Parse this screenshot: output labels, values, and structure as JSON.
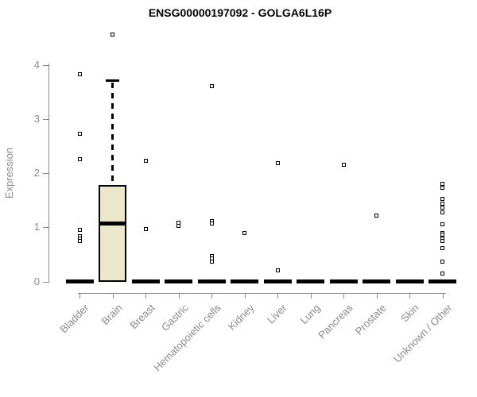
{
  "chart_data": {
    "type": "boxplot",
    "title": "ENSG00000197092 - GOLGA6L16P",
    "xlabel": "",
    "ylabel": "Expression",
    "ylim": [
      0,
      4.6
    ],
    "yticks": [
      0,
      1,
      2,
      3,
      4
    ],
    "grid": false,
    "legend": "none",
    "categories": [
      "Bladder",
      "Brain",
      "Breast",
      "Gastric",
      "Hematopoietic cells",
      "Kidney",
      "Liver",
      "Lung",
      "Pancreas",
      "Prostate",
      "Skin",
      "Unknown / Other"
    ],
    "boxes": [
      {
        "category": "Bladder",
        "q1": 0,
        "median": 0,
        "q3": 0,
        "whisker_low": 0,
        "whisker_high": 0,
        "outliers": [
          3.82,
          2.73,
          2.25,
          0.95,
          0.84,
          0.79,
          0.74
        ]
      },
      {
        "category": "Brain",
        "q1": 0,
        "median": 1.07,
        "q3": 1.77,
        "whisker_low": 0,
        "whisker_high": 3.7,
        "outliers": [
          4.56
        ]
      },
      {
        "category": "Breast",
        "q1": 0,
        "median": 0,
        "q3": 0,
        "whisker_low": 0,
        "whisker_high": 0,
        "outliers": [
          2.22,
          0.97
        ]
      },
      {
        "category": "Gastric",
        "q1": 0,
        "median": 0,
        "q3": 0,
        "whisker_low": 0,
        "whisker_high": 0,
        "outliers": [
          1.09,
          1.03
        ]
      },
      {
        "category": "Hematopoietic cells",
        "q1": 0,
        "median": 0,
        "q3": 0,
        "whisker_low": 0,
        "whisker_high": 0,
        "outliers": [
          3.6,
          1.12,
          1.07,
          0.47,
          0.42,
          0.37
        ]
      },
      {
        "category": "Kidney",
        "q1": 0,
        "median": 0,
        "q3": 0,
        "whisker_low": 0,
        "whisker_high": 0,
        "outliers": [
          0.9
        ]
      },
      {
        "category": "Liver",
        "q1": 0,
        "median": 0,
        "q3": 0,
        "whisker_low": 0,
        "whisker_high": 0,
        "outliers": [
          2.18,
          0.21
        ]
      },
      {
        "category": "Lung",
        "q1": 0,
        "median": 0,
        "q3": 0,
        "whisker_low": 0,
        "whisker_high": 0,
        "outliers": []
      },
      {
        "category": "Pancreas",
        "q1": 0,
        "median": 0,
        "q3": 0,
        "whisker_low": 0,
        "whisker_high": 0,
        "outliers": [
          2.16
        ]
      },
      {
        "category": "Prostate",
        "q1": 0,
        "median": 0,
        "q3": 0,
        "whisker_low": 0,
        "whisker_high": 0,
        "outliers": [
          1.22
        ]
      },
      {
        "category": "Skin",
        "q1": 0,
        "median": 0,
        "q3": 0,
        "whisker_low": 0,
        "whisker_high": 0,
        "outliers": []
      },
      {
        "category": "Unknown / Other",
        "q1": 0,
        "median": 0,
        "q3": 0,
        "whisker_low": 0,
        "whisker_high": 0,
        "outliers": [
          1.8,
          1.73,
          1.52,
          1.43,
          1.36,
          1.27,
          1.06,
          0.9,
          0.86,
          0.79,
          0.74,
          0.61,
          0.36,
          0.15
        ]
      }
    ],
    "colors": {
      "box_fill": "#ECE6CA",
      "box_border": "#000000",
      "axis": "#8a8a8a",
      "tick_text": "#8a8a8a",
      "title_text": "#000000",
      "outlier_fill": "#ffffff"
    }
  }
}
